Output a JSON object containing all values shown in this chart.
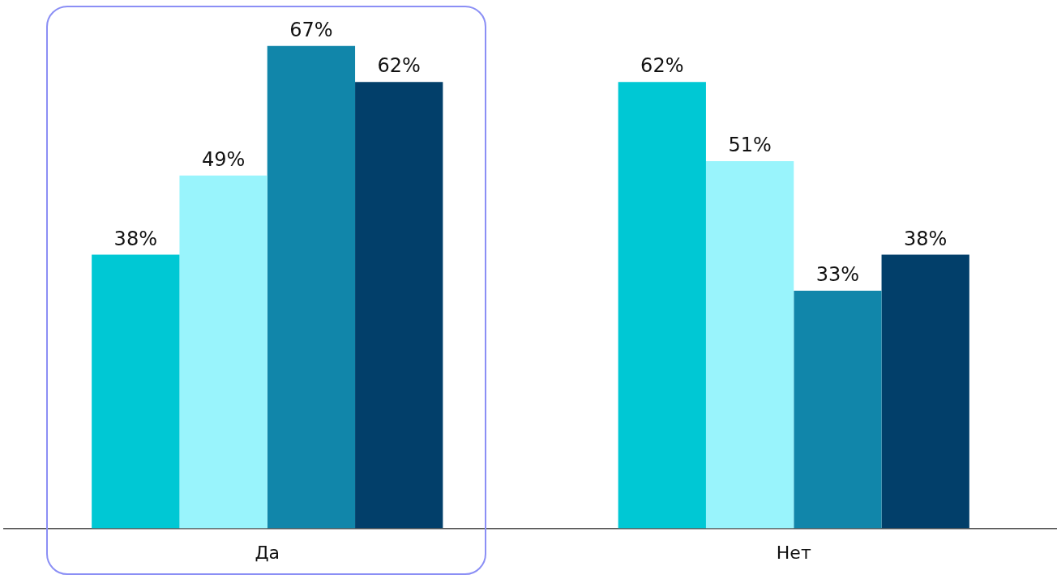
{
  "chart_data": {
    "type": "bar",
    "categories": [
      "Да",
      "Нет"
    ],
    "series": [
      {
        "color": "#00c8d4",
        "values": [
          38,
          62
        ],
        "value_labels": [
          "38%",
          "62%"
        ]
      },
      {
        "color": "#99f4fc",
        "values": [
          49,
          51
        ],
        "value_labels": [
          "49%",
          "51%"
        ]
      },
      {
        "color": "#1186aa",
        "values": [
          67,
          33
        ],
        "value_labels": [
          "67%",
          "33%"
        ]
      },
      {
        "color": "#023f6a",
        "values": [
          62,
          38
        ],
        "value_labels": [
          "62%",
          "38%"
        ]
      }
    ],
    "grid": false,
    "legend": false,
    "tick_labels": "x"
  }
}
